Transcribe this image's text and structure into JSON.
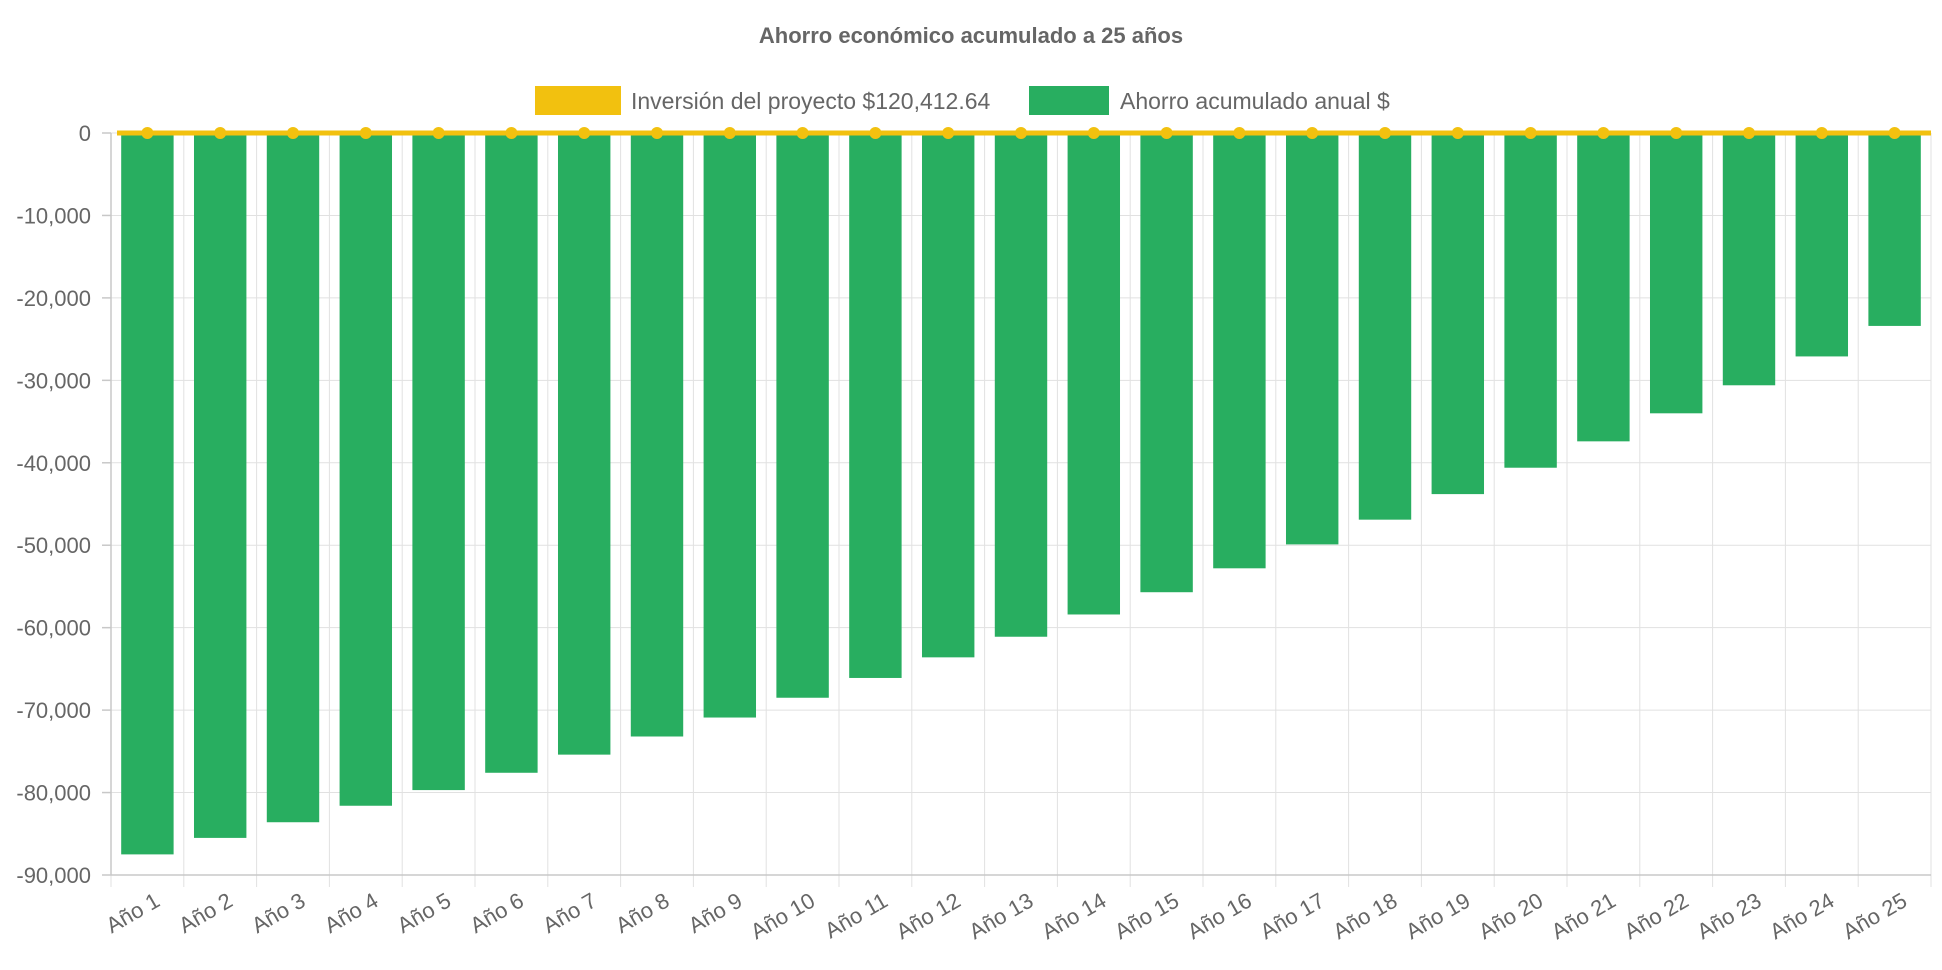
{
  "chart_data": {
    "type": "bar",
    "title": "Ahorro económico acumulado a 25 años",
    "legend_position": "top-center",
    "grid": true,
    "categories": [
      "Año 1",
      "Año 2",
      "Año 3",
      "Año 4",
      "Año 5",
      "Año 6",
      "Año 7",
      "Año 8",
      "Año 9",
      "Año 10",
      "Año 11",
      "Año 12",
      "Año 13",
      "Año 14",
      "Año 15",
      "Año 16",
      "Año 17",
      "Año 18",
      "Año 19",
      "Año 20",
      "Año 21",
      "Año 22",
      "Año 23",
      "Año 24",
      "Año 25"
    ],
    "ylim": [
      -90000,
      0
    ],
    "yticks": [
      0,
      -10000,
      -20000,
      -30000,
      -40000,
      -50000,
      -60000,
      -70000,
      -80000,
      -90000
    ],
    "ytick_labels": [
      "0",
      "-10,000",
      "-20,000",
      "-30,000",
      "-40,000",
      "-50,000",
      "-60,000",
      "-70,000",
      "-80,000",
      "-90,000"
    ],
    "series": [
      {
        "name": "Inversión del proyecto $120,412.64",
        "type": "line",
        "color": "#f2c10f",
        "values": [
          0,
          0,
          0,
          0,
          0,
          0,
          0,
          0,
          0,
          0,
          0,
          0,
          0,
          0,
          0,
          0,
          0,
          0,
          0,
          0,
          0,
          0,
          0,
          0,
          0
        ]
      },
      {
        "name": "Ahorro acumulado anual $",
        "type": "bar",
        "color": "#28ae60",
        "values": [
          -87500,
          -85500,
          -83600,
          -81600,
          -79700,
          -77600,
          -75400,
          -73200,
          -70900,
          -68500,
          -66100,
          -63600,
          -61100,
          -58400,
          -55700,
          -52800,
          -49900,
          -46900,
          -43800,
          -40600,
          -37400,
          -34000,
          -30600,
          -27100,
          -23400
        ]
      }
    ]
  }
}
